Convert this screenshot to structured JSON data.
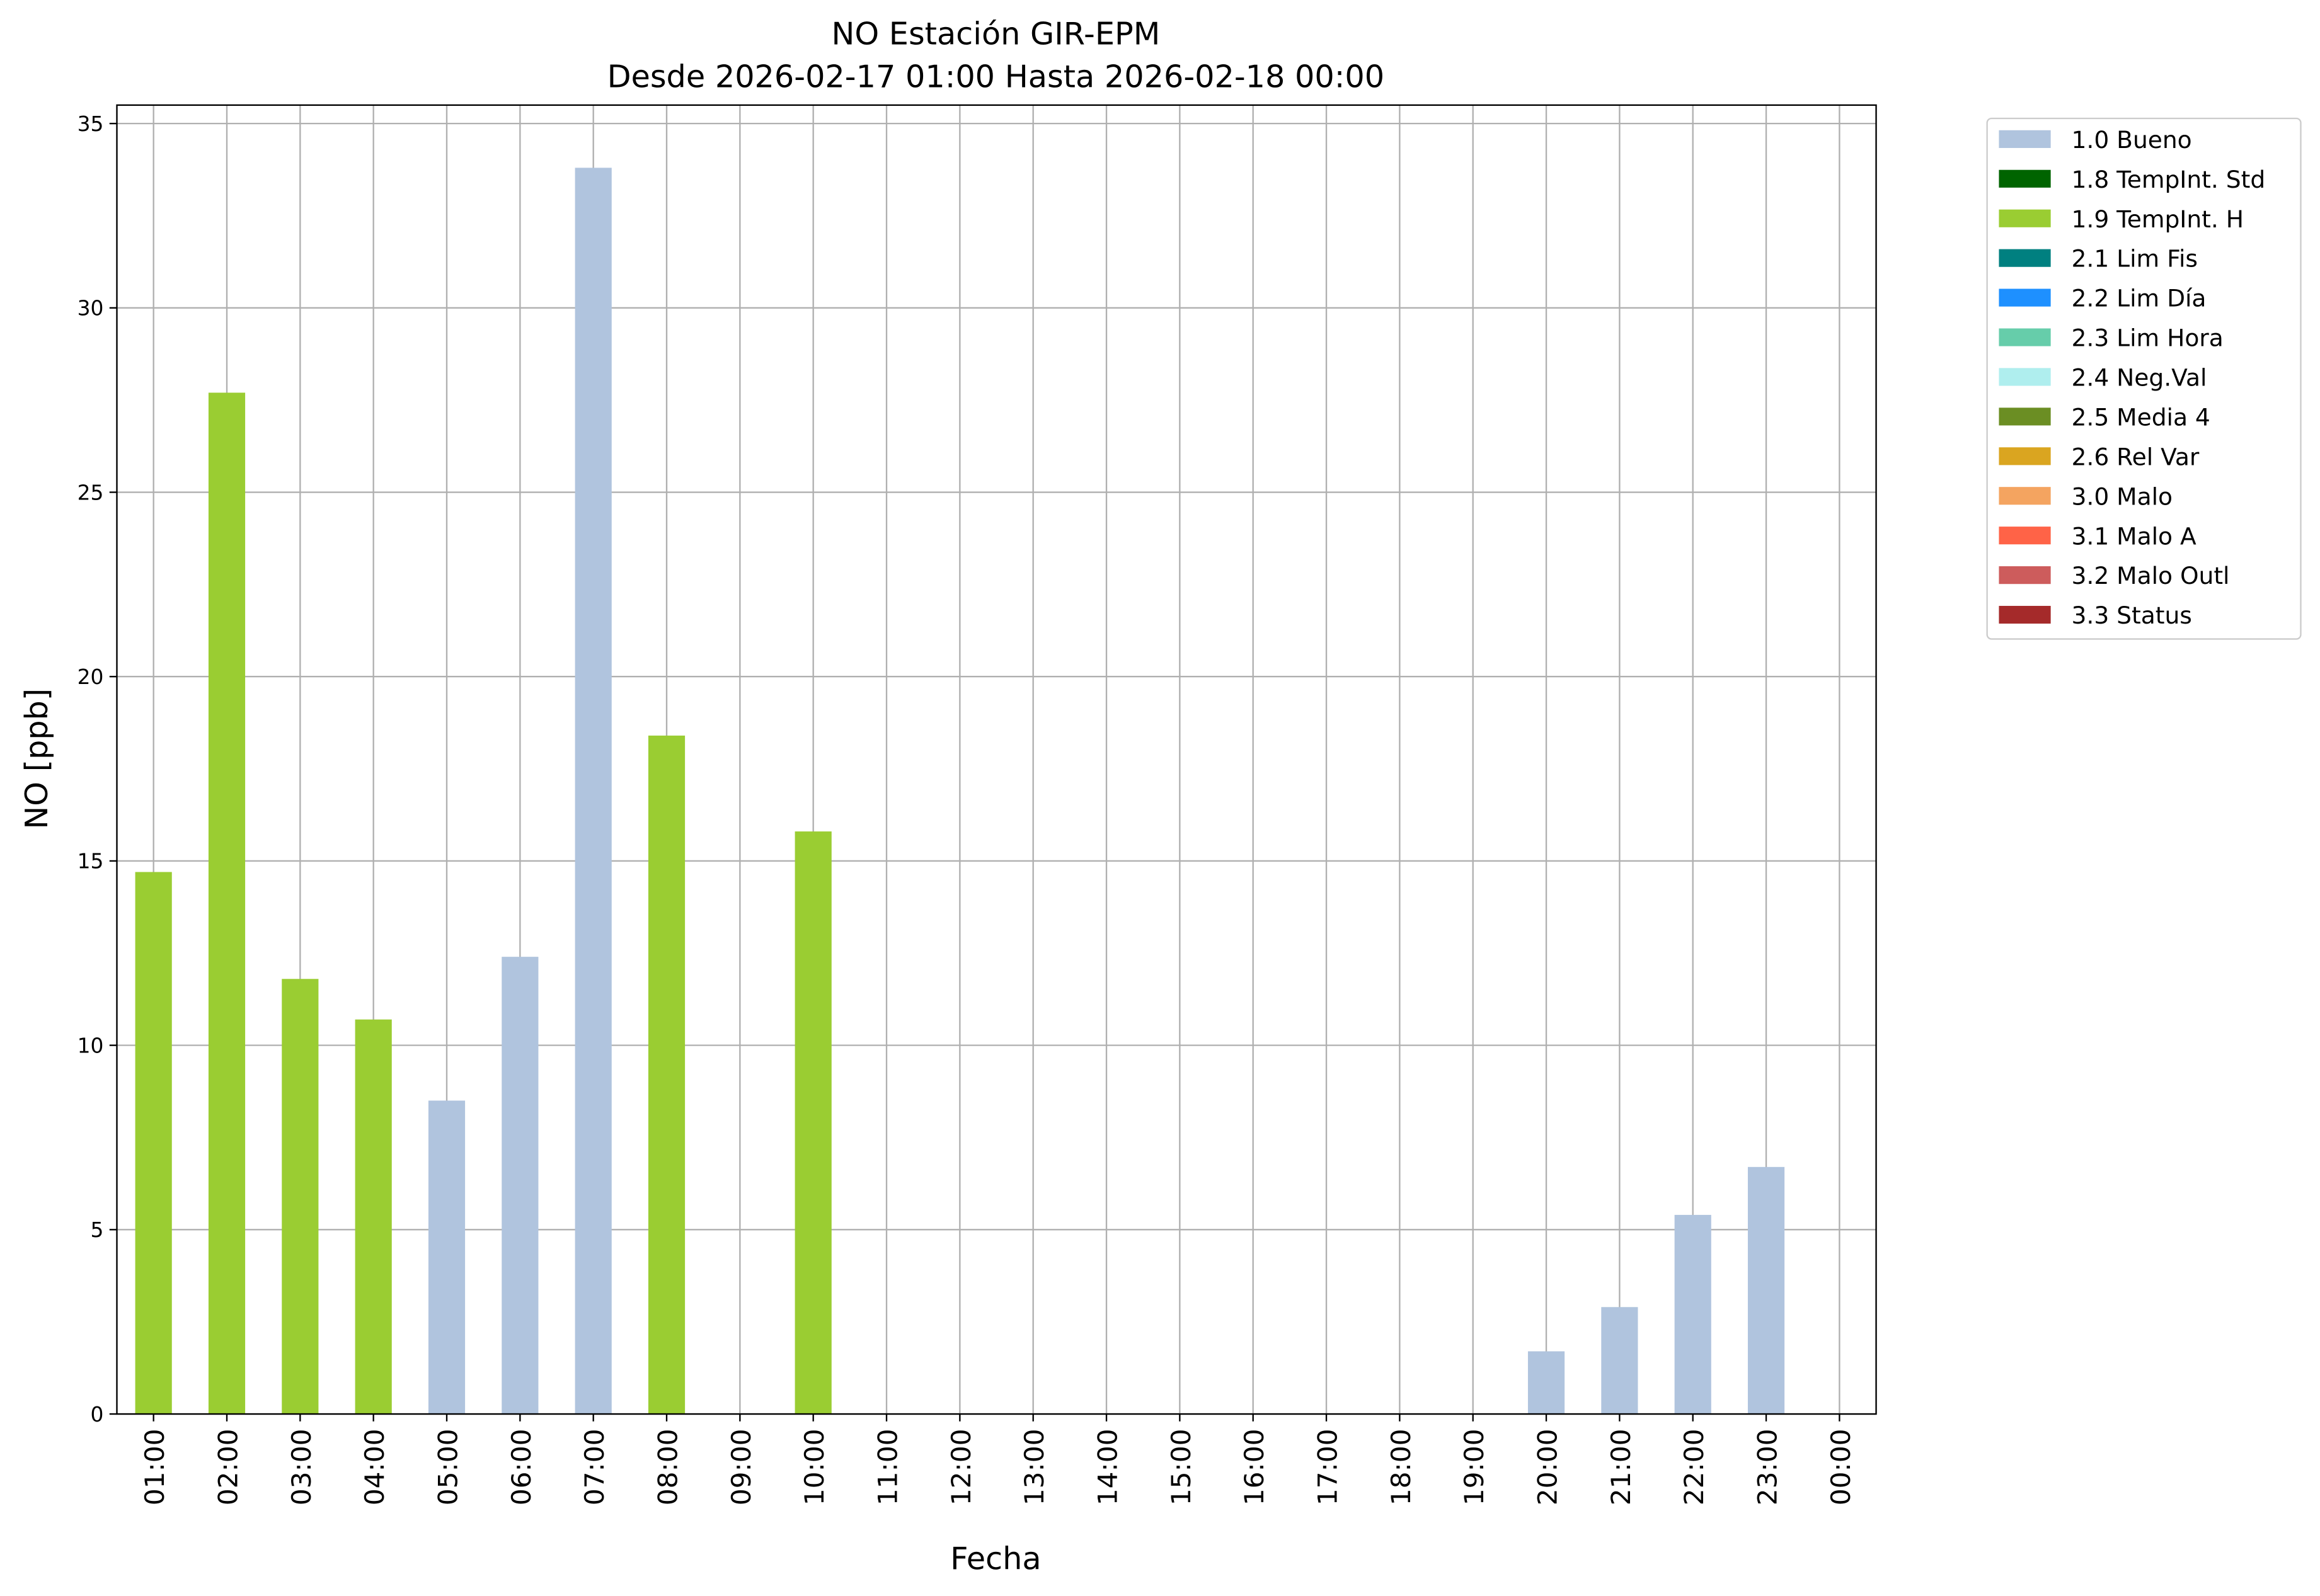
{
  "chart_data": {
    "type": "stacked_bar",
    "title": "NO Estación GIR-EPM",
    "subtitle": "Desde 2026-02-17 01:00 Hasta 2026-02-18 00:00",
    "x_label": "Fecha",
    "y_label": "NO [ppb]",
    "categories": [
      "01:00",
      "02:00",
      "03:00",
      "04:00",
      "05:00",
      "06:00",
      "07:00",
      "08:00",
      "09:00",
      "10:00",
      "11:00",
      "12:00",
      "13:00",
      "14:00",
      "15:00",
      "16:00",
      "17:00",
      "18:00",
      "19:00",
      "20:00",
      "21:00",
      "22:00",
      "23:00",
      "00:00"
    ],
    "series": [
      {
        "name": "1.0 Bueno",
        "color": "#b0c4de",
        "values": [
          null,
          null,
          null,
          null,
          8.5,
          12.4,
          33.8,
          null,
          null,
          null,
          null,
          null,
          null,
          null,
          null,
          null,
          null,
          null,
          null,
          1.7,
          2.9,
          5.4,
          6.7,
          null
        ]
      },
      {
        "name": "1.8 TempInt. Std",
        "color": "#006400",
        "values": [
          null,
          null,
          null,
          null,
          null,
          null,
          null,
          null,
          null,
          null,
          null,
          null,
          null,
          null,
          null,
          null,
          null,
          null,
          null,
          null,
          null,
          null,
          null,
          null
        ]
      },
      {
        "name": "1.9 TempInt. H",
        "color": "#9acd32",
        "values": [
          14.7,
          27.7,
          11.8,
          10.7,
          null,
          null,
          null,
          18.4,
          null,
          15.8,
          null,
          null,
          null,
          null,
          null,
          null,
          null,
          null,
          null,
          null,
          null,
          null,
          null,
          null
        ]
      },
      {
        "name": "2.1 Lim Fis",
        "color": "#008080",
        "values": [
          null,
          null,
          null,
          null,
          null,
          null,
          null,
          null,
          null,
          null,
          null,
          null,
          null,
          null,
          null,
          null,
          null,
          null,
          null,
          null,
          null,
          null,
          null,
          null
        ]
      },
      {
        "name": "2.2 Lim Día",
        "color": "#1e90ff",
        "values": [
          null,
          null,
          null,
          null,
          null,
          null,
          null,
          null,
          null,
          null,
          null,
          null,
          null,
          null,
          null,
          null,
          null,
          null,
          null,
          null,
          null,
          null,
          null,
          null
        ]
      },
      {
        "name": "2.3 Lim Hora",
        "color": "#66cdaa",
        "values": [
          null,
          null,
          null,
          null,
          null,
          null,
          null,
          null,
          null,
          null,
          null,
          null,
          null,
          null,
          null,
          null,
          null,
          null,
          null,
          null,
          null,
          null,
          null,
          null
        ]
      },
      {
        "name": "2.4 Neg.Val",
        "color": "#afeeee",
        "values": [
          null,
          null,
          null,
          null,
          null,
          null,
          null,
          null,
          null,
          null,
          null,
          null,
          null,
          null,
          null,
          null,
          null,
          null,
          null,
          null,
          null,
          null,
          null,
          null
        ]
      },
      {
        "name": "2.5 Media 4",
        "color": "#6b8e23",
        "values": [
          null,
          null,
          null,
          null,
          null,
          null,
          null,
          null,
          null,
          null,
          null,
          null,
          null,
          null,
          null,
          null,
          null,
          null,
          null,
          null,
          null,
          null,
          null,
          null
        ]
      },
      {
        "name": "2.6 Rel Var",
        "color": "#daa520",
        "values": [
          null,
          null,
          null,
          null,
          null,
          null,
          null,
          null,
          null,
          null,
          null,
          null,
          null,
          null,
          null,
          null,
          null,
          null,
          null,
          null,
          null,
          null,
          null,
          null
        ]
      },
      {
        "name": "3.0 Malo",
        "color": "#f4a460",
        "values": [
          null,
          null,
          null,
          null,
          null,
          null,
          null,
          null,
          null,
          null,
          null,
          null,
          null,
          null,
          null,
          null,
          null,
          null,
          null,
          null,
          null,
          null,
          null,
          null
        ]
      },
      {
        "name": "3.1 Malo A",
        "color": "#ff6347",
        "values": [
          null,
          null,
          null,
          null,
          null,
          null,
          null,
          null,
          null,
          null,
          null,
          null,
          null,
          null,
          null,
          null,
          null,
          null,
          null,
          null,
          null,
          null,
          null,
          null
        ]
      },
      {
        "name": "3.2 Malo Outl",
        "color": "#cd5c5c",
        "values": [
          null,
          null,
          null,
          null,
          null,
          null,
          null,
          null,
          null,
          null,
          null,
          null,
          null,
          null,
          null,
          null,
          null,
          null,
          null,
          null,
          null,
          null,
          null,
          null
        ]
      },
      {
        "name": "3.3 Status",
        "color": "#a52a2a",
        "values": [
          null,
          null,
          null,
          null,
          null,
          null,
          null,
          null,
          null,
          null,
          null,
          null,
          null,
          null,
          null,
          null,
          null,
          null,
          null,
          null,
          null,
          null,
          null,
          null
        ]
      }
    ],
    "ylim": [
      0,
      35.5
    ],
    "yticks": [
      0,
      5,
      10,
      15,
      20,
      25,
      30,
      35
    ],
    "grid": true,
    "legend": "outside-upper-right"
  }
}
